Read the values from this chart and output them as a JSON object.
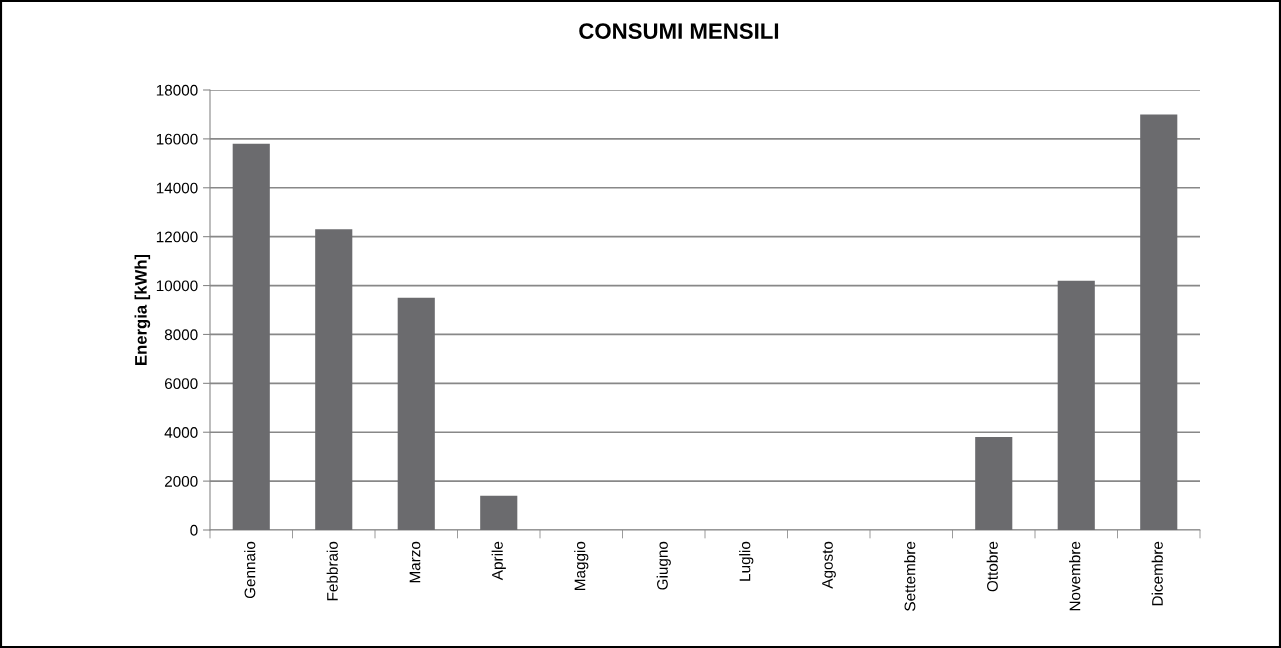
{
  "chart_data": {
    "type": "bar",
    "title": "CONSUMI MENSILI",
    "ylabel": "Energia [kWh]",
    "categories": [
      "Gennaio",
      "Febbraio",
      "Marzo",
      "Aprile",
      "Maggio",
      "Giugno",
      "Luglio",
      "Agosto",
      "Settembre",
      "Ottobre",
      "Novembre",
      "Dicembre"
    ],
    "values": [
      15800,
      12300,
      9500,
      1400,
      0,
      0,
      0,
      0,
      0,
      3800,
      10200,
      17000
    ],
    "color": "#6b6b6e",
    "ylim": [
      0,
      18000
    ],
    "yticks": [
      0,
      2000,
      4000,
      6000,
      8000,
      10000,
      12000,
      14000,
      16000,
      18000
    ],
    "grid": "y",
    "legend": false
  }
}
